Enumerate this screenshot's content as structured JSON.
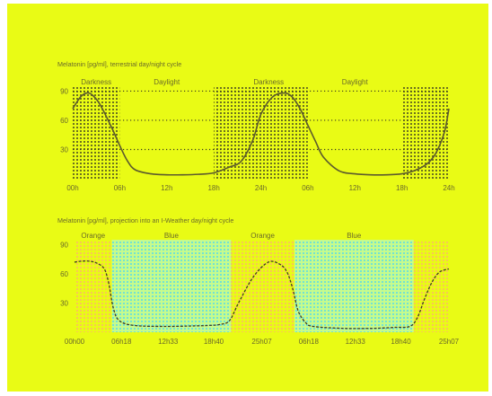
{
  "colors": {
    "background": "#e9fb15",
    "text": "#6a6a2a",
    "curve": "#5c5a2c",
    "dots": "#3a3a20",
    "orange_dots": "#ffb070",
    "blue_dots": "#50d8f0",
    "blue_fill": "#c6fb8c"
  },
  "chart_data": [
    {
      "type": "line",
      "title": "Melatonin [pg/ml], terrestrial day/night cycle",
      "x_tick_labels": [
        "00h",
        "06h",
        "12h",
        "18h",
        "24h",
        "06h",
        "12h",
        "18h",
        "24h"
      ],
      "x_ticks_hours": [
        0,
        6,
        12,
        18,
        24,
        30,
        36,
        42,
        48
      ],
      "y_ticks": [
        30,
        60,
        90
      ],
      "ylim": [
        0,
        95
      ],
      "xlim": [
        0,
        48
      ],
      "bands": [
        {
          "label": "Darkness",
          "start": 0,
          "end": 6
        },
        {
          "label": "Daylight",
          "start": 6,
          "end": 18
        },
        {
          "label": "",
          "start": 18,
          "end": 20
        },
        {
          "label": "Darkness",
          "start": 20,
          "end": 30
        },
        {
          "label": "Daylight",
          "start": 30,
          "end": 42
        },
        {
          "label": "",
          "start": 42,
          "end": 48
        }
      ],
      "gridlines_y": [
        30,
        60,
        90
      ],
      "series": [
        {
          "x": [
            0,
            1,
            1.8,
            2.5,
            3.5,
            5,
            6,
            7,
            8,
            10,
            12,
            14,
            16,
            18,
            20,
            21.5,
            23,
            24,
            25.5,
            27,
            28,
            29,
            30,
            31,
            32,
            34,
            36,
            38,
            40,
            42,
            43.5,
            45,
            46,
            46.8,
            47.5,
            48
          ],
          "y": [
            72,
            84,
            88,
            86,
            76,
            52,
            34,
            18,
            9,
            5,
            4,
            4,
            4.5,
            6,
            12,
            18,
            40,
            66,
            84,
            88,
            84,
            72,
            55,
            38,
            22,
            8,
            5,
            4,
            4,
            5,
            8,
            14,
            22,
            34,
            50,
            72
          ]
        }
      ]
    },
    {
      "type": "line",
      "title": "Melatonin [pg/ml], projection into an I-Weather day/night cycle",
      "x_tick_labels": [
        "00h00",
        "06h18",
        "12h33",
        "18h40",
        "25h07",
        "06h18",
        "12h33",
        "18h40",
        "25h07"
      ],
      "x_ticks_hours": [
        0,
        6.3,
        12.55,
        18.67,
        25.12,
        31.42,
        37.67,
        43.79,
        50.23
      ],
      "y_ticks": [
        30,
        60,
        90
      ],
      "ylim": [
        0,
        95
      ],
      "xlim": [
        0,
        50.23
      ],
      "bands": [
        {
          "label": "Orange",
          "start": 0,
          "end": 5
        },
        {
          "label": "Blue",
          "start": 5,
          "end": 21
        },
        {
          "label": "Orange",
          "start": 21,
          "end": 29.5
        },
        {
          "label": "Blue",
          "start": 29.5,
          "end": 45.5
        },
        {
          "label": "",
          "start": 45.5,
          "end": 50.23
        }
      ],
      "series": [
        {
          "x": [
            0,
            1,
            2,
            3,
            4,
            4.6,
            5.2,
            6,
            8,
            12,
            16,
            18,
            19.5,
            20.8,
            22,
            24,
            26,
            27.5,
            28.5,
            29.3,
            30,
            31,
            32,
            36,
            40,
            43,
            45,
            46,
            47,
            48,
            49,
            50.23
          ],
          "y": [
            72,
            73,
            73,
            71,
            65,
            50,
            25,
            12,
            7,
            6,
            6.5,
            7,
            8,
            12,
            30,
            57,
            72,
            70,
            62,
            44,
            22,
            10,
            6,
            4,
            4,
            5,
            6,
            15,
            35,
            52,
            62,
            65
          ]
        }
      ]
    }
  ]
}
